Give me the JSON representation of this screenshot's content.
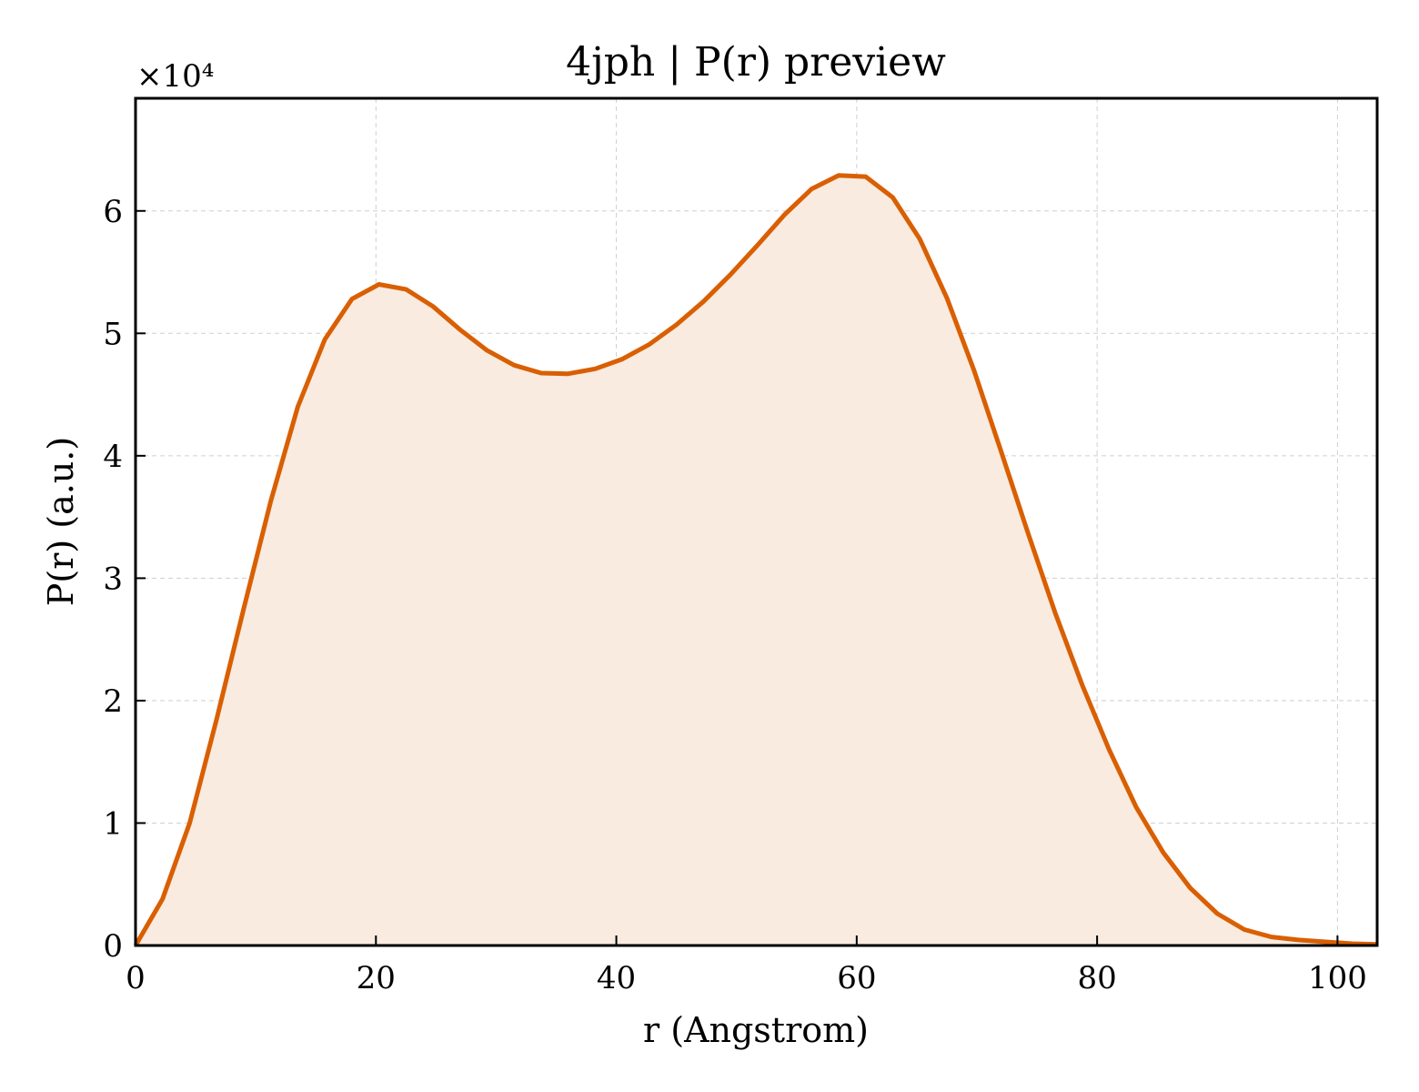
{
  "chart_data": {
    "type": "area",
    "title": "4jph | P(r) preview",
    "xlabel": "r (Angstrom)",
    "ylabel": "P(r) (a.u.)",
    "y_offset_label": "×10⁴",
    "xlim": [
      0,
      103.3
    ],
    "ylim": [
      0,
      6.92
    ],
    "xticks": [
      0,
      20,
      40,
      60,
      80,
      100
    ],
    "yticks": [
      0,
      1,
      2,
      3,
      4,
      5,
      6
    ],
    "grid": true,
    "line_color": "#d95f02",
    "fill_color": "#f9ebe0",
    "series": [
      {
        "x": [
          0,
          2.25,
          4.5,
          6.75,
          9.0,
          11.25,
          13.5,
          15.75,
          18.0,
          20.25,
          22.5,
          24.75,
          27.0,
          29.25,
          31.5,
          33.75,
          36.0,
          38.25,
          40.5,
          42.75,
          45.0,
          47.25,
          49.5,
          51.75,
          54.0,
          56.25,
          58.5,
          60.75,
          63.0,
          65.25,
          67.5,
          69.75,
          72.0,
          74.25,
          76.5,
          78.75,
          81.0,
          83.25,
          85.5,
          87.75,
          90.0,
          92.25,
          94.5,
          96.75,
          99.0,
          101.25,
          103.3
        ],
        "y": [
          0.0,
          0.38,
          1.0,
          1.85,
          2.75,
          3.63,
          4.4,
          4.95,
          5.28,
          5.4,
          5.36,
          5.22,
          5.03,
          4.86,
          4.74,
          4.675,
          4.67,
          4.71,
          4.79,
          4.91,
          5.07,
          5.26,
          5.48,
          5.72,
          5.97,
          6.18,
          6.29,
          6.28,
          6.11,
          5.77,
          5.29,
          4.7,
          4.04,
          3.37,
          2.72,
          2.13,
          1.6,
          1.13,
          0.76,
          0.47,
          0.26,
          0.13,
          0.07,
          0.045,
          0.03,
          0.015,
          0.01
        ]
      }
    ]
  }
}
